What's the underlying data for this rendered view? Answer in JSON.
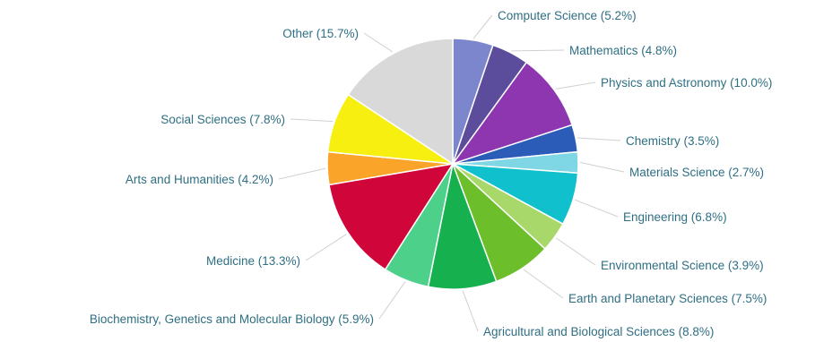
{
  "chart_data": {
    "type": "pie",
    "title": "",
    "slices": [
      {
        "label": "Computer Science (5.2%)",
        "name": "Computer Science",
        "value": 5.2,
        "color": "#7b86cc"
      },
      {
        "label": "Mathematics (4.8%)",
        "name": "Mathematics",
        "value": 4.8,
        "color": "#5c4c9c"
      },
      {
        "label": "Physics and Astronomy (10.0%)",
        "name": "Physics and Astronomy",
        "value": 10.0,
        "color": "#8e36b0"
      },
      {
        "label": "Chemistry (3.5%)",
        "name": "Chemistry",
        "value": 3.5,
        "color": "#2b5cb8"
      },
      {
        "label": "Materials Science (2.7%)",
        "name": "Materials Science",
        "value": 2.7,
        "color": "#7fd6e4"
      },
      {
        "label": "Engineering (6.8%)",
        "name": "Engineering",
        "value": 6.8,
        "color": "#10c0cc"
      },
      {
        "label": "Environmental Science (3.9%)",
        "name": "Environmental Science",
        "value": 3.9,
        "color": "#a9d86a"
      },
      {
        "label": "Earth and Planetary Sciences (7.5%)",
        "name": "Earth and Planetary Sciences",
        "value": 7.5,
        "color": "#6cbf2a"
      },
      {
        "label": "Agricultural and Biological Sciences (8.8%)",
        "name": "Agricultural and Biological Sciences",
        "value": 8.8,
        "color": "#17b04e"
      },
      {
        "label": "Biochemistry, Genetics and Molecular Biology (5.9%)",
        "name": "Biochemistry, Genetics and Molecular Biology",
        "value": 5.9,
        "color": "#4dd18a"
      },
      {
        "label": "Medicine (13.3%)",
        "name": "Medicine",
        "value": 13.3,
        "color": "#d0063a"
      },
      {
        "label": "Arts and Humanities (4.2%)",
        "name": "Arts and Humanities",
        "value": 4.2,
        "color": "#fba42a"
      },
      {
        "label": "Social Sciences (7.8%)",
        "name": "Social Sciences",
        "value": 7.8,
        "color": "#f7ef10"
      },
      {
        "label": "Other (15.7%)",
        "name": "Other",
        "value": 15.7,
        "color": "#d9d9d9"
      }
    ]
  }
}
